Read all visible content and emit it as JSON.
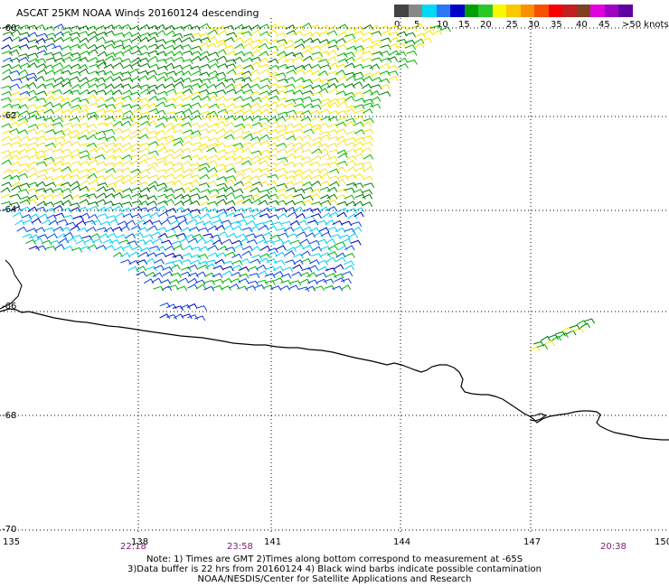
{
  "header": {
    "title": "ASCAT 25KM NOAA Winds 20160124 descending"
  },
  "legend": {
    "labels": [
      "0",
      "5",
      "10",
      "15",
      "20",
      "25",
      "30",
      "35",
      "40",
      "45",
      ">50 knots"
    ],
    "colors": [
      "#444444",
      "#888888",
      "#00d8f8",
      "#2878f8",
      "#0000c8",
      "#00a000",
      "#28c828",
      "#f8f800",
      "#f8c800",
      "#f89000",
      "#f85000",
      "#f80000",
      "#c02020",
      "#804020",
      "#e000e0",
      "#a000c0",
      "#6000a0"
    ]
  },
  "axes": {
    "lon_labels": [
      "135",
      "138",
      "141",
      "144",
      "147",
      "150"
    ],
    "lat_labels": [
      "-60",
      "-62",
      "-64",
      "-66",
      "-68",
      "-70"
    ],
    "times": [
      "22:18",
      "23:58",
      "20:38"
    ]
  },
  "map": {
    "lon_range": [
      135,
      150
    ],
    "lat_range": [
      -70,
      -60
    ],
    "wind_colors": {
      "green_dark": "#007800",
      "green": "#00b400",
      "yellow": "#f8e800",
      "yellow_pale": "#f0e040",
      "cyan": "#00d0f0",
      "blue": "#1040e0",
      "navy": "#0000b0"
    },
    "coastline_color": "#000000"
  },
  "notes": {
    "line1": "Note: 1) Times are GMT 2)Times along bottom correspond to measurement at -65S",
    "line2": "3)Data buffer is 22 hrs from 20160124 4) Black wind barbs indicate possible contamination",
    "line3": "NOAA/NESDIS/Center for Satellite Applications and Research"
  }
}
